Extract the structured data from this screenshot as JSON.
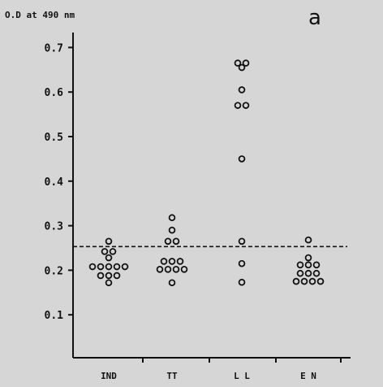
{
  "chart_data": {
    "type": "scatter",
    "panel_label": "a",
    "ylabel": "O.D at 490 nm",
    "xlabel": "",
    "ylim": [
      0.0,
      0.75
    ],
    "yticks": [
      0.1,
      0.2,
      0.3,
      0.4,
      0.5,
      0.6,
      0.7
    ],
    "ytick_labels": [
      "0.1",
      "0.2",
      "0.3",
      "0.4",
      "0.5",
      "0.6",
      "0.7"
    ],
    "categories": [
      "IND",
      "TT",
      "L L",
      "E N"
    ],
    "reference_line": {
      "y": 0.253,
      "style": "dashed"
    },
    "grid": false,
    "series": [
      {
        "category": "IND",
        "values": [
          0.265,
          0.242,
          0.242,
          0.228,
          0.208,
          0.208,
          0.208,
          0.208,
          0.208,
          0.188,
          0.188,
          0.188,
          0.172
        ]
      },
      {
        "category": "TT",
        "values": [
          0.318,
          0.29,
          0.265,
          0.265,
          0.22,
          0.22,
          0.22,
          0.202,
          0.202,
          0.202,
          0.202,
          0.172
        ]
      },
      {
        "category": "L L",
        "values": [
          0.665,
          0.665,
          0.655,
          0.605,
          0.57,
          0.57,
          0.45,
          0.265,
          0.215,
          0.173
        ]
      },
      {
        "category": "E N",
        "values": [
          0.268,
          0.228,
          0.212,
          0.212,
          0.212,
          0.193,
          0.193,
          0.193,
          0.175,
          0.175,
          0.175,
          0.175
        ]
      }
    ]
  }
}
